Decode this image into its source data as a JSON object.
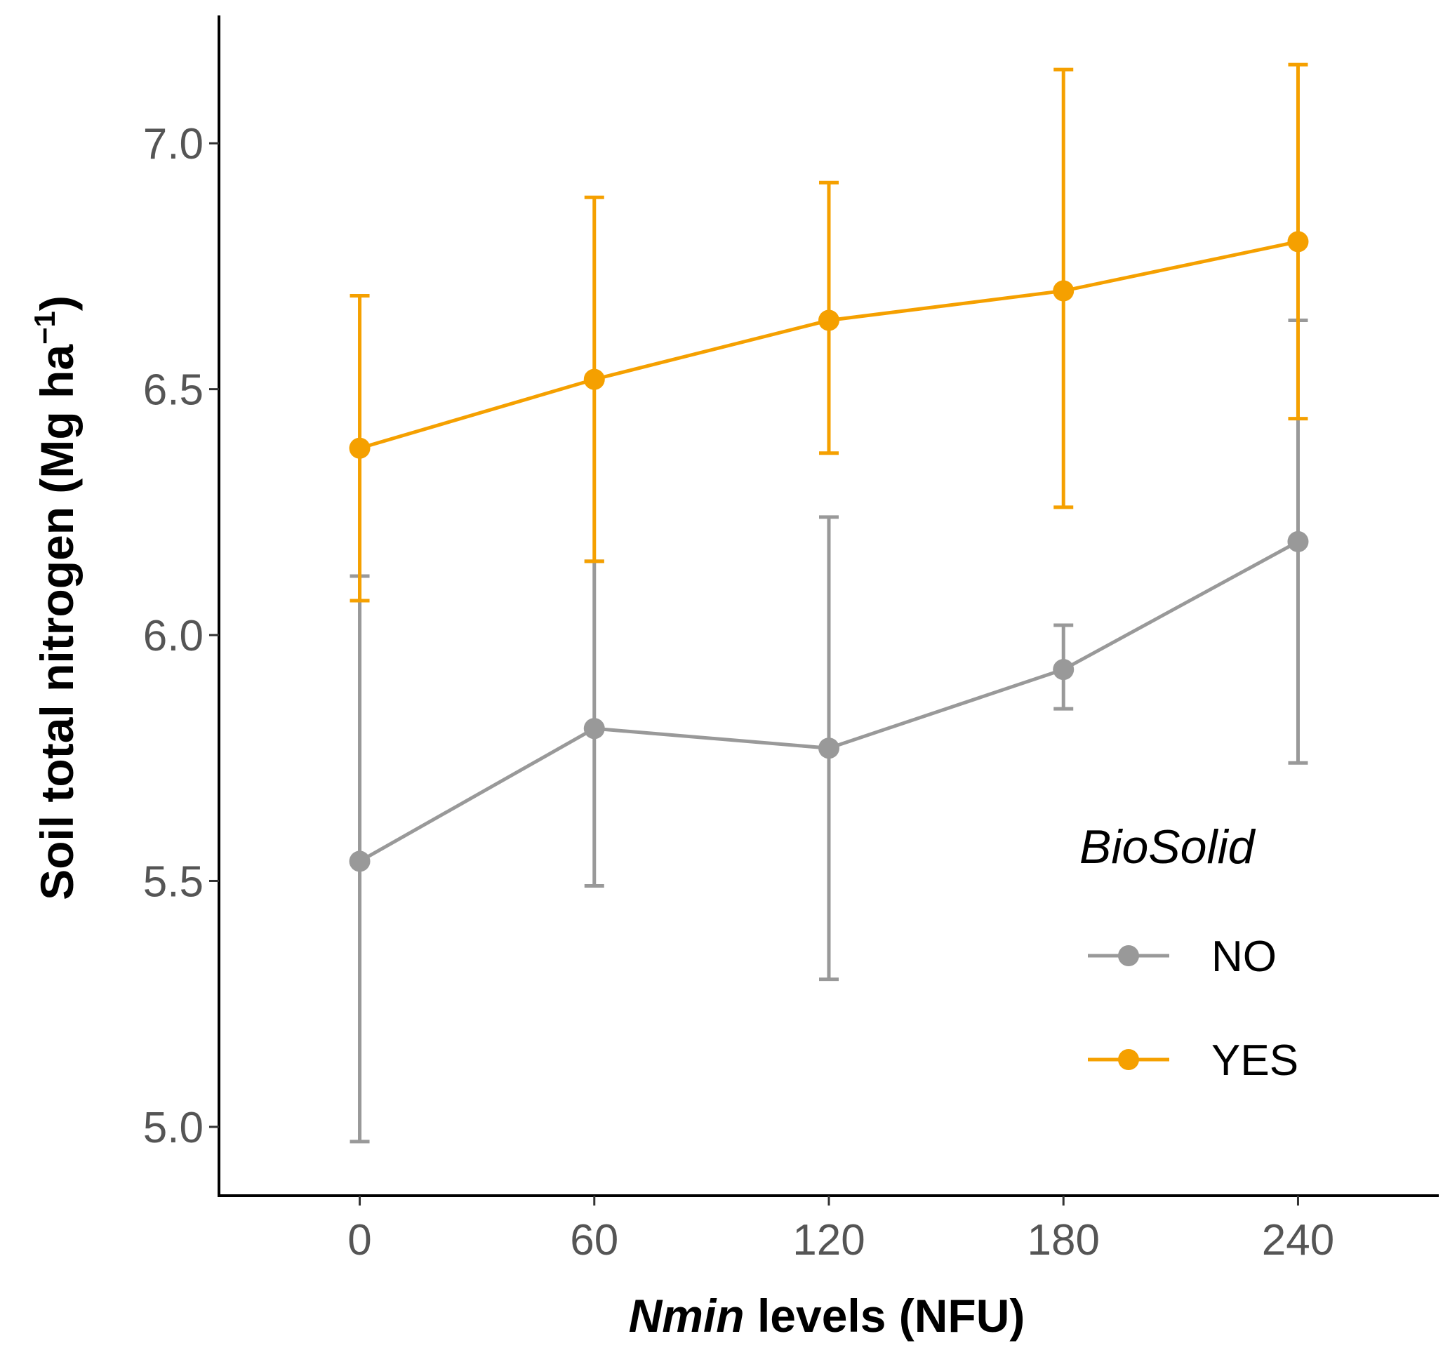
{
  "chart_data": {
    "type": "line",
    "title": "",
    "xlabel_italic": "Nmin",
    "xlabel_rest": " levels (NFU)",
    "ylabel_main": "Soil total nitrogen (Mg ha",
    "ylabel_sup": "−1",
    "ylabel_close": ")",
    "x": [
      0,
      60,
      120,
      180,
      240
    ],
    "x_tick_labels": [
      "0",
      "60",
      "120",
      "180",
      "240"
    ],
    "y_tick_values": [
      5.0,
      5.5,
      6.0,
      6.5,
      7.0
    ],
    "y_tick_labels": [
      "5.0",
      "5.5",
      "6.0",
      "6.5",
      "7.0"
    ],
    "xlim": [
      -36,
      276
    ],
    "ylim": [
      4.86,
      7.26
    ],
    "grid": false,
    "legend": {
      "title": "BioSolid",
      "position": "right"
    },
    "series": [
      {
        "name": "NO",
        "color": "#999999",
        "values": [
          5.54,
          5.81,
          5.77,
          5.93,
          6.19
        ],
        "lower": [
          4.97,
          5.49,
          5.3,
          5.85,
          5.74
        ],
        "upper": [
          6.12,
          6.15,
          6.24,
          6.02,
          6.64
        ]
      },
      {
        "name": "YES",
        "color": "#F5A000",
        "values": [
          6.38,
          6.52,
          6.64,
          6.7,
          6.8
        ],
        "lower": [
          6.07,
          6.15,
          6.37,
          6.26,
          6.44
        ],
        "upper": [
          6.69,
          6.89,
          6.92,
          7.15,
          7.16
        ]
      }
    ]
  }
}
